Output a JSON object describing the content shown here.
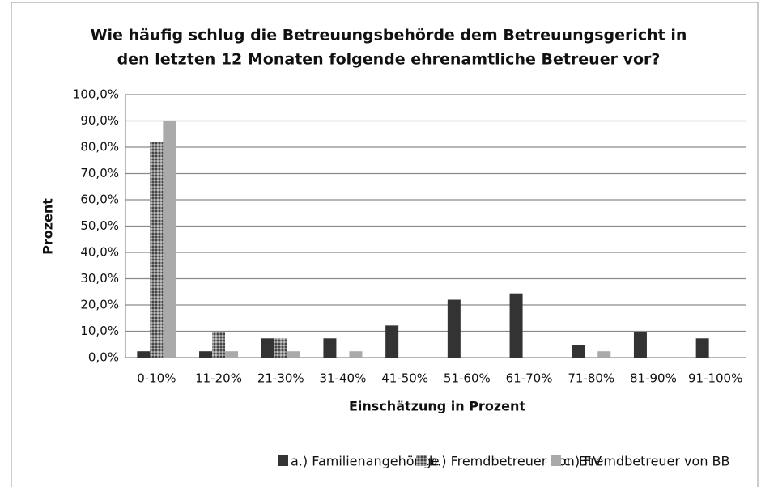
{
  "chart_data": {
    "type": "bar",
    "title": [
      "Wie häufig schlug die Betreuungsbehörde dem Betreuungsgericht in",
      "den letzten 12 Monaten folgende ehrenamtliche Betreuer vor?"
    ],
    "x_label": "Einschätzung in Prozent",
    "y_label": "Prozent",
    "categories": [
      "0-10%",
      "11-20%",
      "21-30%",
      "31-40%",
      "41-50%",
      "51-60%",
      "61-70%",
      "71-80%",
      "81-90%",
      "91-100%"
    ],
    "series": [
      {
        "name": "a.) Familienangehörige",
        "color": "#333333",
        "values": [
          2.4,
          2.4,
          7.3,
          7.3,
          12.2,
          22.0,
          24.4,
          4.9,
          9.8,
          7.3
        ]
      },
      {
        "name": "b.) Fremdbetreuer von BtV",
        "color": "#777777",
        "pattern": true,
        "values": [
          82.0,
          9.8,
          7.3,
          0,
          0,
          0,
          0,
          0,
          0,
          0
        ]
      },
      {
        "name": "c.) Fremdbetreuer von BB",
        "color": "#aaaaaa",
        "values": [
          90.0,
          2.4,
          2.4,
          2.4,
          0,
          0,
          0,
          2.4,
          0,
          0
        ]
      }
    ],
    "ylim": [
      0,
      100
    ],
    "yticks": [
      {
        "value": 0,
        "label": "0,0%"
      },
      {
        "value": 10,
        "label": "10,0%"
      },
      {
        "value": 20,
        "label": "20,0%"
      },
      {
        "value": 30,
        "label": "30,0%"
      },
      {
        "value": 40,
        "label": "40,0%"
      },
      {
        "value": 50,
        "label": "50,0%"
      },
      {
        "value": 60,
        "label": "60,0%"
      },
      {
        "value": 70,
        "label": "70,0%"
      },
      {
        "value": 80,
        "label": "80,0%"
      },
      {
        "value": 90,
        "label": "90,0%"
      },
      {
        "value": 100,
        "label": "100,0%"
      }
    ],
    "grid": true,
    "legend": "bottom"
  }
}
